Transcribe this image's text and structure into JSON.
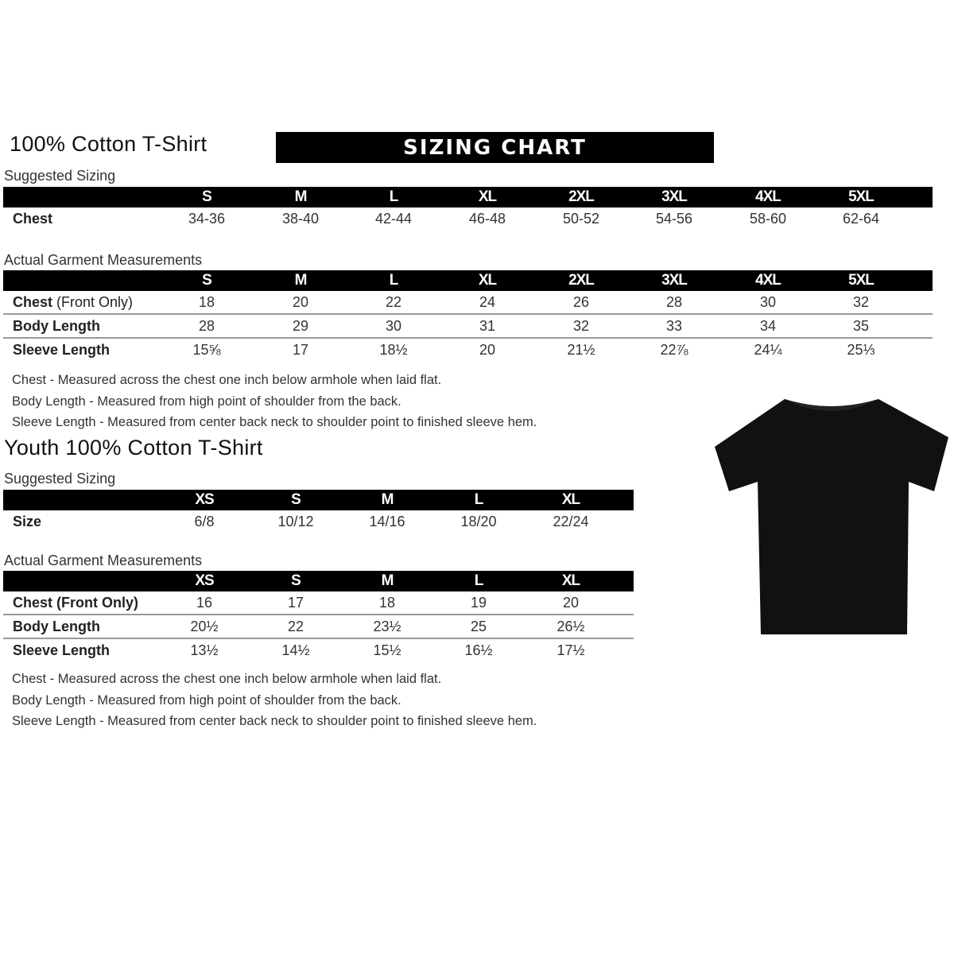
{
  "adult": {
    "title": "100% Cotton T-Shirt",
    "banner": "SIZING CHART",
    "suggested_label": "Suggested Sizing",
    "sizes": [
      "S",
      "M",
      "L",
      "XL",
      "2XL",
      "3XL",
      "4XL",
      "5XL"
    ],
    "suggested_rows": [
      {
        "label": "Chest",
        "values": [
          "34-36",
          "38-40",
          "42-44",
          "46-48",
          "50-52",
          "54-56",
          "58-60",
          "62-64"
        ]
      }
    ],
    "actual_label": "Actual Garment Measurements",
    "actual_rows": [
      {
        "label": "Chest",
        "label_suffix": " (Front Only)",
        "values": [
          "18",
          "20",
          "22",
          "24",
          "26",
          "28",
          "30",
          "32"
        ]
      },
      {
        "label": "Body Length",
        "label_suffix": "",
        "values": [
          "28",
          "29",
          "30",
          "31",
          "32",
          "33",
          "34",
          "35"
        ]
      },
      {
        "label": "Sleeve Length",
        "label_suffix": "",
        "values": [
          "15⅝",
          "17",
          "18½",
          "20",
          "21½",
          "22⅞",
          "24¼",
          "25⅓"
        ]
      }
    ],
    "notes": [
      "Chest - Measured across the chest one inch below armhole when laid flat.",
      "Body Length - Measured from high point of shoulder from the back.",
      "Sleeve Length - Measured from center back neck to shoulder point to finished sleeve hem."
    ]
  },
  "youth": {
    "title": "Youth 100% Cotton T-Shirt",
    "suggested_label": "Suggested Sizing",
    "sizes": [
      "XS",
      "S",
      "M",
      "L",
      "XL"
    ],
    "suggested_rows": [
      {
        "label": "Size",
        "values": [
          "6/8",
          "10/12",
          "14/16",
          "18/20",
          "22/24"
        ]
      }
    ],
    "actual_label": "Actual Garment Measurements",
    "actual_rows": [
      {
        "label": "Chest (Front Only)",
        "label_suffix": "",
        "values": [
          "16",
          "17",
          "18",
          "19",
          "20"
        ]
      },
      {
        "label": "Body Length",
        "label_suffix": "",
        "values": [
          "20½",
          "22",
          "23½",
          "25",
          "26½"
        ]
      },
      {
        "label": "Sleeve Length",
        "label_suffix": "",
        "values": [
          "13½",
          "14½",
          "15½",
          "16½",
          "17½"
        ]
      }
    ],
    "notes": [
      "Chest - Measured across the chest one inch below armhole when laid flat.",
      "Body Length - Measured from high point of shoulder from the back.",
      "Sleeve Length - Measured from center back neck to shoulder point to finished sleeve hem."
    ]
  },
  "image": {
    "icon": "black-t-shirt",
    "color": "#111111"
  }
}
